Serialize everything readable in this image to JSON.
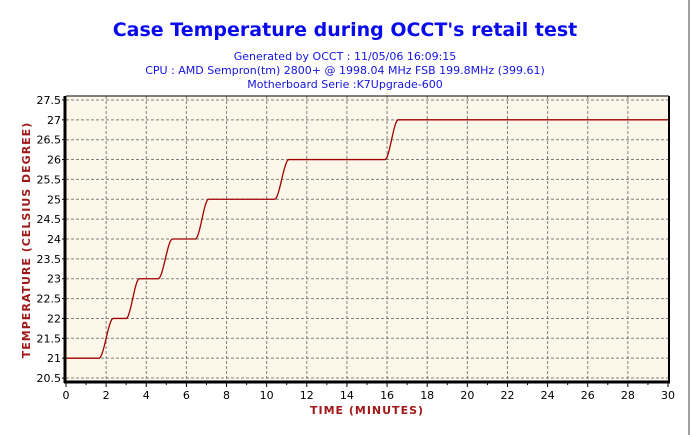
{
  "chart_data": {
    "type": "line",
    "title": "Case Temperature during OCCT's retail test",
    "subtitles": [
      "Generated by OCCT : 11/05/06 16:09:15",
      "CPU : AMD Sempron(tm) 2800+ @ 1998.04 MHz FSB 199.8MHz (399.61)",
      "Motherboard Serie :K7Upgrade-600"
    ],
    "xlabel": "TIME (MINUTES)",
    "ylabel": "TEMPERATURE (CELSIUS DEGREE)",
    "xlim": [
      0,
      30
    ],
    "ylim": [
      20.4,
      27.6
    ],
    "xticks": [
      0,
      2,
      4,
      6,
      8,
      10,
      12,
      14,
      16,
      18,
      20,
      22,
      24,
      26,
      28,
      30
    ],
    "yticks": [
      20.5,
      21,
      21.5,
      22,
      22.5,
      23,
      23.5,
      24,
      24.5,
      25,
      25.5,
      26,
      26.5,
      27,
      27.5
    ],
    "grid": true,
    "series": [
      {
        "name": "Case Temperature",
        "color": "#a00000",
        "x": [
          0,
          1.65,
          2.35,
          3.0,
          3.65,
          4.6,
          5.3,
          6.45,
          7.1,
          10.4,
          11.1,
          15.9,
          16.55,
          30
        ],
        "y": [
          21,
          21,
          22,
          22,
          23,
          23,
          24,
          24,
          25,
          25,
          26,
          26,
          27,
          27
        ]
      }
    ]
  },
  "colors": {
    "plot_bg": "#fdf7e9",
    "grid": "#808080",
    "line": "#a00000",
    "title": "#0a0aee"
  }
}
